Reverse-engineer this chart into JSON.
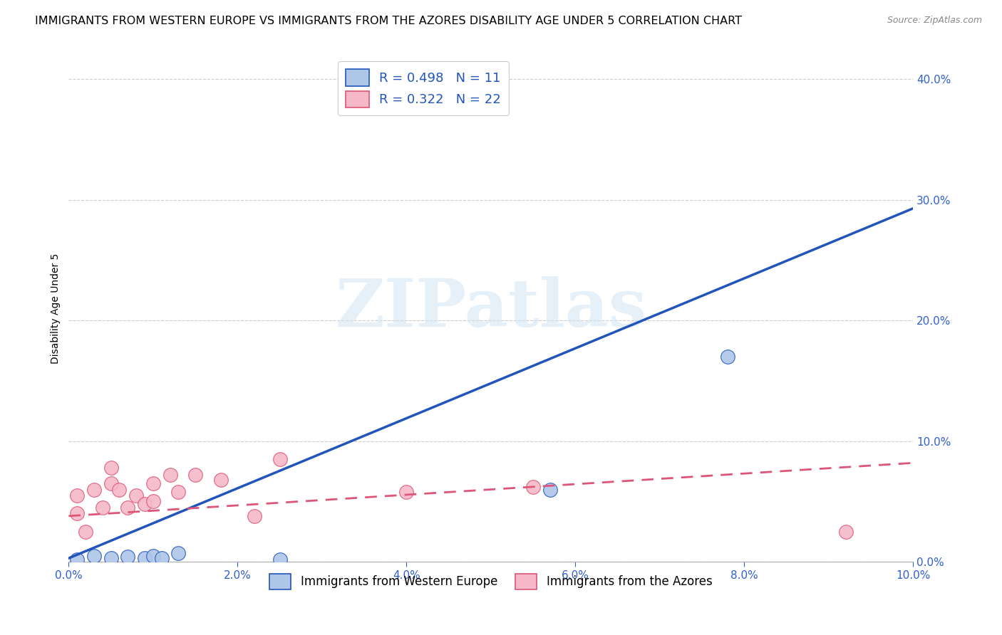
{
  "title": "IMMIGRANTS FROM WESTERN EUROPE VS IMMIGRANTS FROM THE AZORES DISABILITY AGE UNDER 5 CORRELATION CHART",
  "source": "Source: ZipAtlas.com",
  "ylabel": "Disability Age Under 5",
  "xlim": [
    0.0,
    0.1
  ],
  "ylim": [
    0.0,
    0.42
  ],
  "legend1_label": "R = 0.498   N = 11",
  "legend2_label": "R = 0.322   N = 22",
  "legend_color1": "#aec6e8",
  "legend_color2": "#f5b8c8",
  "line1_color": "#2255bb",
  "line2_color": "#dd5577",
  "scatter1_color": "#aec6e8",
  "scatter2_color": "#f5b8c8",
  "watermark_text": "ZIPatlas",
  "bottom_legend1": "Immigrants from Western Europe",
  "bottom_legend2": "Immigrants from the Azores",
  "blue_points_x": [
    0.001,
    0.003,
    0.005,
    0.007,
    0.009,
    0.01,
    0.011,
    0.013,
    0.025,
    0.057,
    0.078
  ],
  "blue_points_y": [
    0.002,
    0.005,
    0.003,
    0.004,
    0.003,
    0.005,
    0.003,
    0.007,
    0.002,
    0.06,
    0.17
  ],
  "pink_points_x": [
    0.001,
    0.001,
    0.002,
    0.003,
    0.004,
    0.005,
    0.005,
    0.006,
    0.007,
    0.008,
    0.009,
    0.01,
    0.01,
    0.012,
    0.013,
    0.015,
    0.018,
    0.022,
    0.025,
    0.04,
    0.055,
    0.092
  ],
  "pink_points_y": [
    0.055,
    0.04,
    0.025,
    0.06,
    0.045,
    0.078,
    0.065,
    0.06,
    0.045,
    0.055,
    0.048,
    0.065,
    0.05,
    0.072,
    0.058,
    0.072,
    0.068,
    0.038,
    0.085,
    0.058,
    0.062,
    0.025
  ],
  "blue_line_x": [
    0.0,
    0.1
  ],
  "blue_line_y": [
    0.003,
    0.293
  ],
  "pink_line_x": [
    0.0,
    0.1
  ],
  "pink_line_y": [
    0.038,
    0.082
  ],
  "grid_color": "#cccccc",
  "background_color": "#ffffff",
  "title_fontsize": 11.5,
  "axis_label_fontsize": 10,
  "tick_fontsize": 11,
  "text_color": "#3060cc",
  "legend_r_color": "#2255bb"
}
